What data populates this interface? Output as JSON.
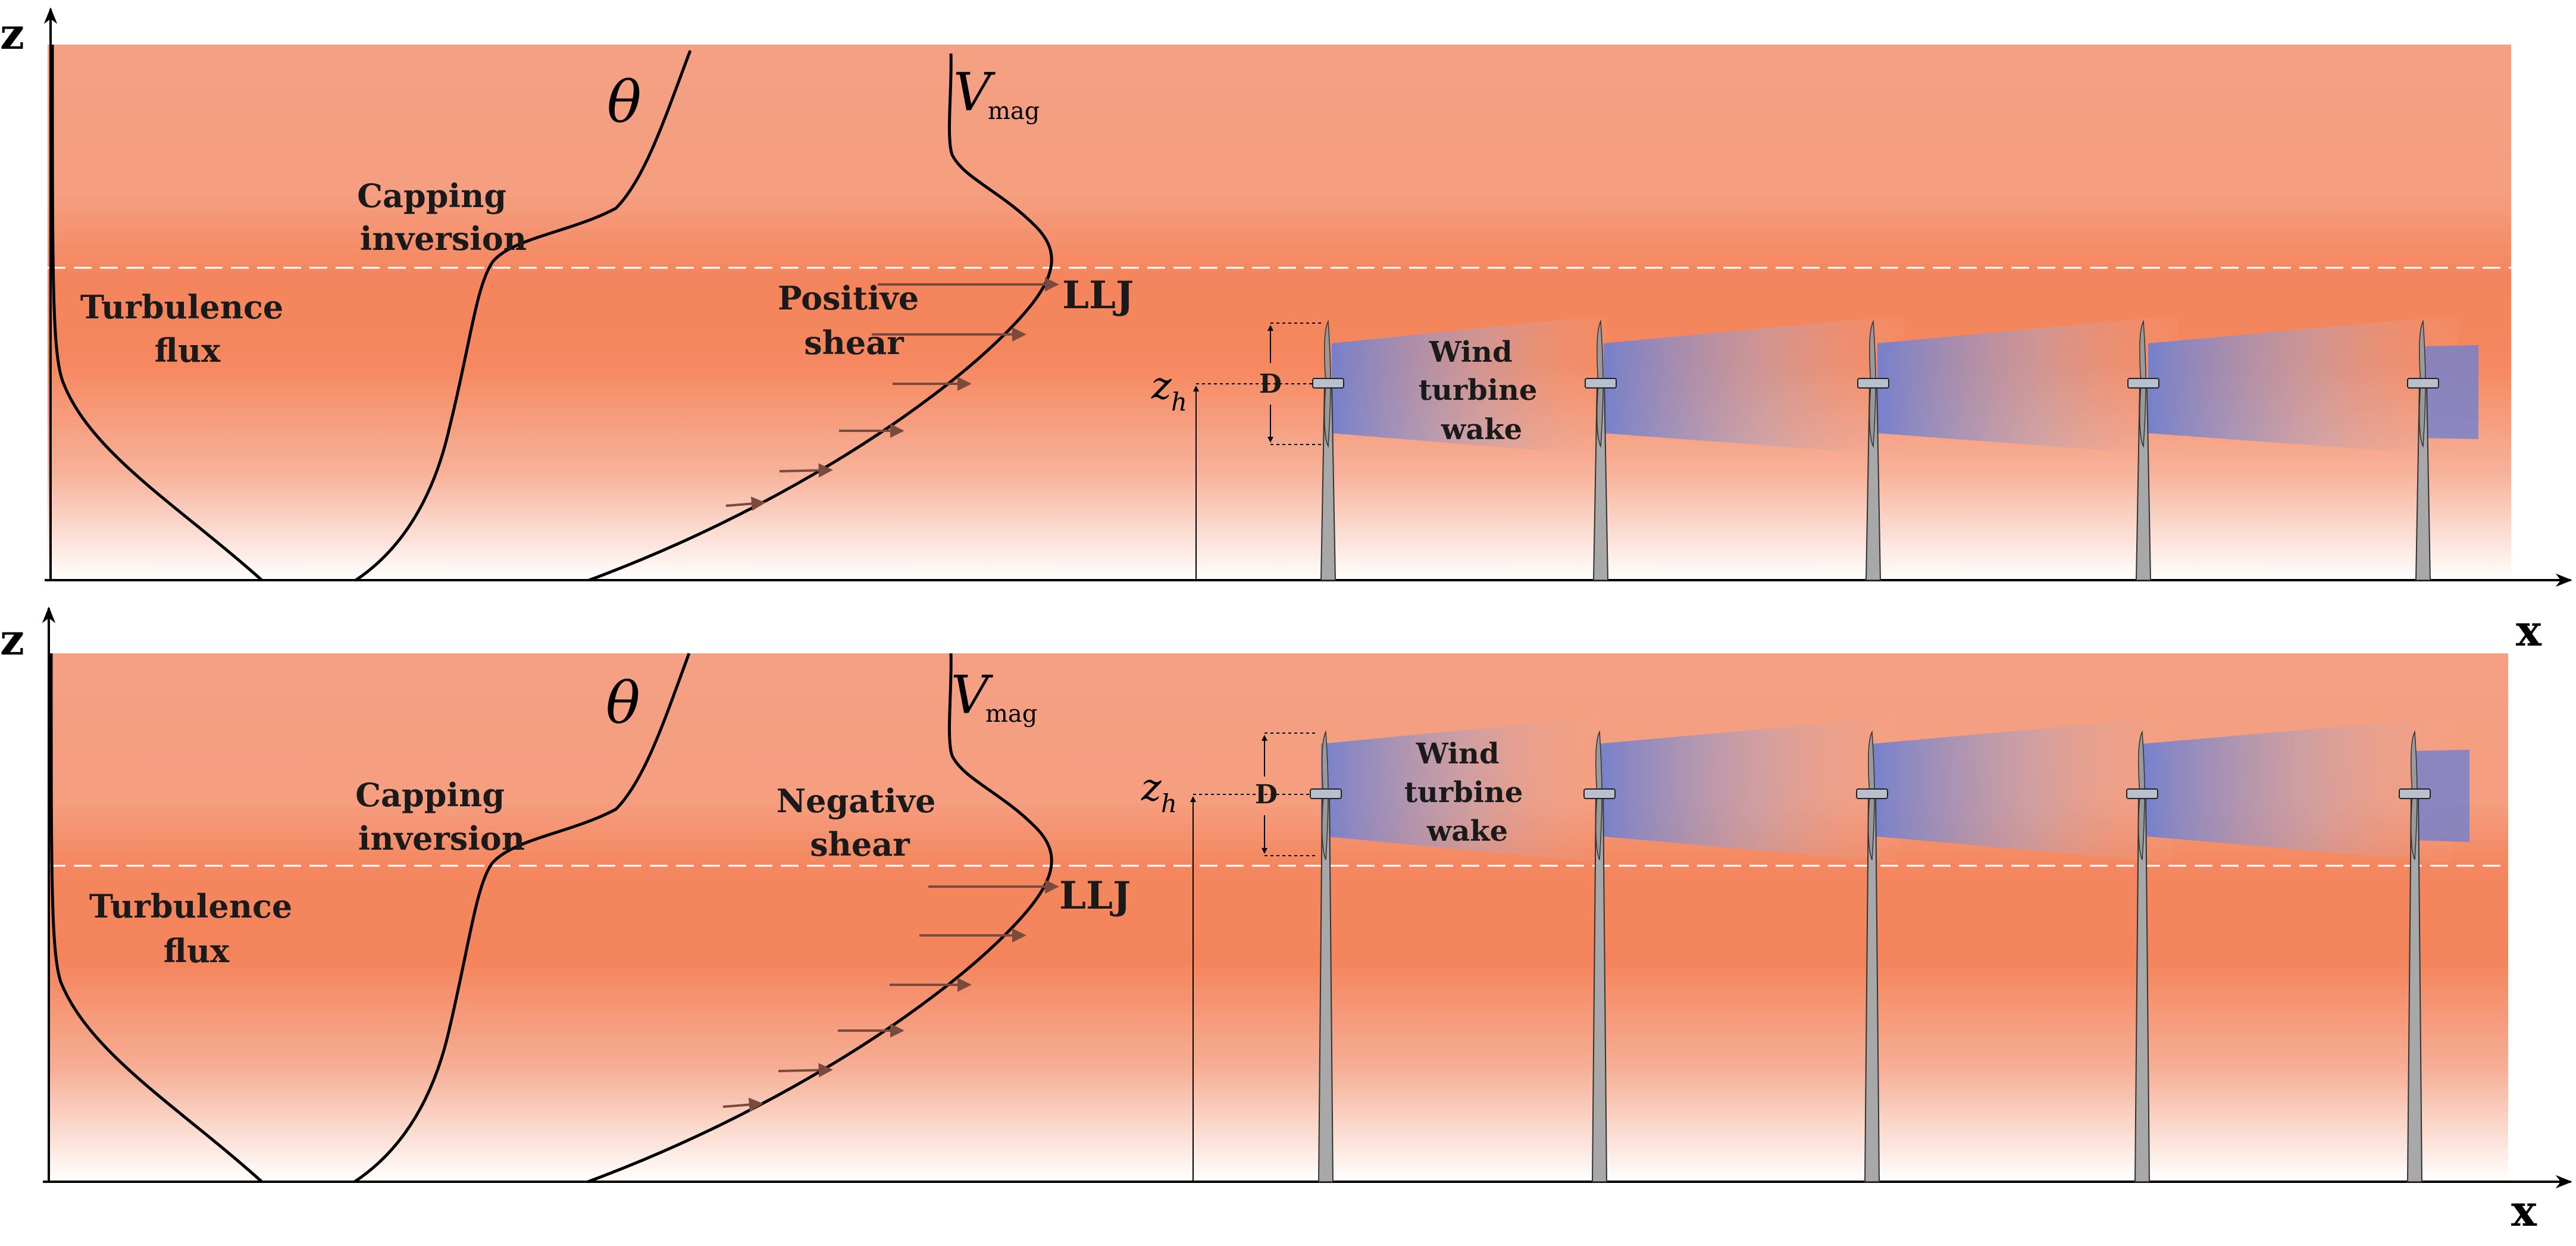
{
  "panels": [
    {
      "axis_z": "z",
      "axis_x": "x",
      "theta": "θ",
      "v_sym": "V",
      "v_sub": "mag",
      "capping": [
        "Capping",
        "inversion"
      ],
      "turb": [
        "Turbulence",
        "flux"
      ],
      "shear": [
        "Positive",
        "shear"
      ],
      "llj": "LLJ",
      "zh_sym": "z",
      "zh_sub": "h",
      "d": "D",
      "wake": [
        "Wind",
        "turbine",
        "wake"
      ]
    },
    {
      "axis_z": "z",
      "axis_x": "x",
      "theta": "θ",
      "v_sym": "V",
      "v_sub": "mag",
      "capping": [
        "Capping",
        "inversion"
      ],
      "turb": [
        "Turbulence",
        "flux"
      ],
      "shear": [
        "Negative",
        "shear"
      ],
      "llj": "LLJ",
      "zh_sym": "z",
      "zh_sub": "h",
      "d": "D",
      "wake": [
        "Wind",
        "turbine",
        "wake"
      ]
    }
  ],
  "colors": {
    "atmosphere_top": "#f5a586",
    "atmosphere_llj": "#f4845c",
    "atmosphere_ground": "#ffffff",
    "wake_core": "#6f7fd0",
    "dashed_line": "#ffffff"
  }
}
